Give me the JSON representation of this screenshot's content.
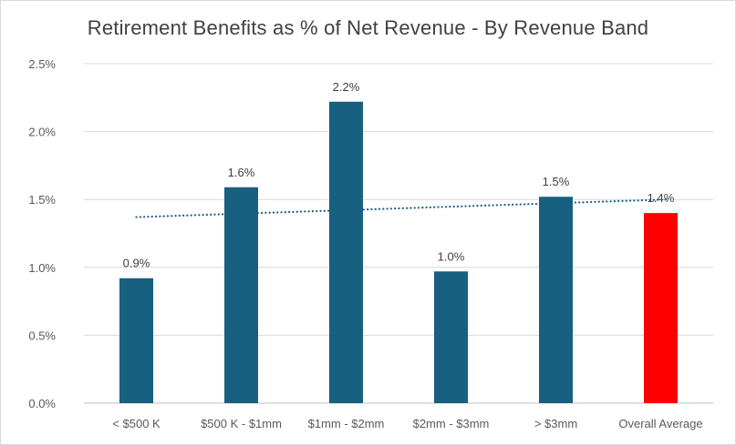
{
  "chart_data": {
    "type": "bar",
    "title": "Retirement Benefits as % of Net Revenue - By Revenue Band",
    "xlabel": "",
    "ylabel": "",
    "categories": [
      "< $500 K",
      "$500 K - $1mm",
      "$1mm - $2mm",
      "$2mm - $3mm",
      "> $3mm",
      "Overall Average"
    ],
    "values": [
      0.92,
      1.59,
      2.22,
      0.97,
      1.52,
      1.4
    ],
    "data_labels": [
      "0.9%",
      "1.6%",
      "2.2%",
      "1.0%",
      "1.5%",
      "1.4%"
    ],
    "bar_colors": [
      "#17607f",
      "#17607f",
      "#17607f",
      "#17607f",
      "#17607f",
      "#ff0000"
    ],
    "ylim": [
      0,
      2.5
    ],
    "y_ticks": [
      0,
      0.5,
      1.0,
      1.5,
      2.0,
      2.5
    ],
    "y_tick_labels": [
      "0.0%",
      "0.5%",
      "1.0%",
      "1.5%",
      "2.0%",
      "2.5%"
    ],
    "grid": true,
    "legend": "none",
    "trendline": {
      "type": "linear",
      "style": "dotted",
      "color": "#17607f",
      "start_value": 1.37,
      "end_value": 1.5,
      "from_category": 0,
      "to_category": 5
    }
  }
}
